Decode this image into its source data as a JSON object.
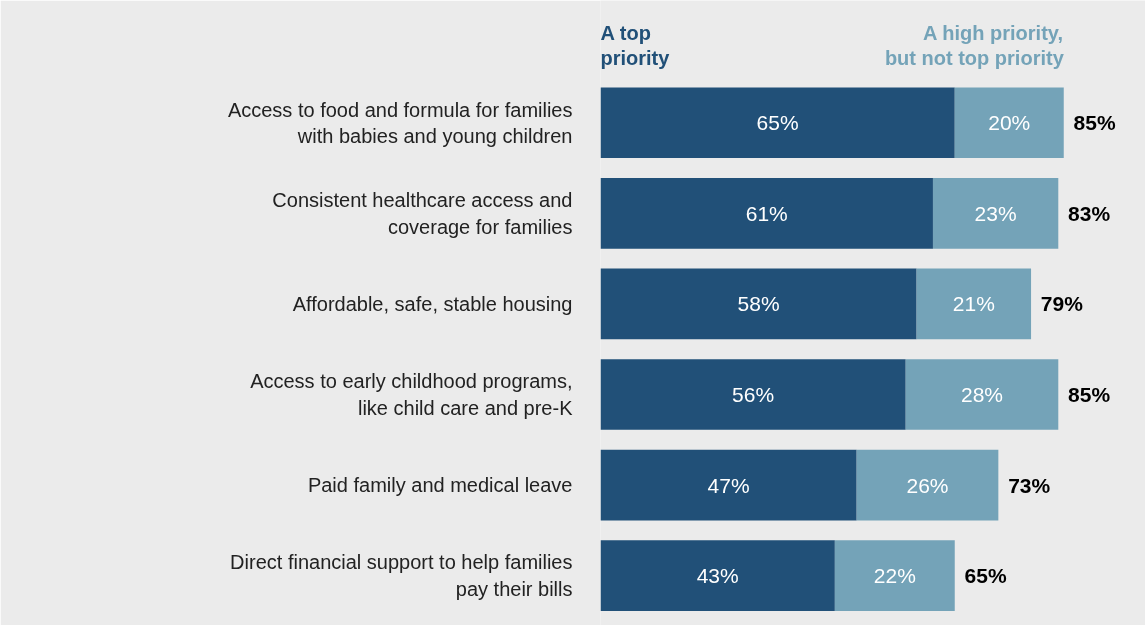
{
  "chart_data": {
    "type": "bar",
    "orientation": "horizontal",
    "stacked": true,
    "legend": "top",
    "categories": [
      "Access to food and formula for families\nwith babies and young children",
      "Consistent healthcare access and\ncoverage for families",
      "Affordable, safe, stable housing",
      "Access to early childhood programs,\nlike child care and pre-K",
      "Paid family and medical leave",
      "Direct financial support to help families\npay their bills"
    ],
    "xlim": [
      0,
      100
    ],
    "series": [
      {
        "name": "A top\npriority",
        "color": "#215078",
        "values": [
          65,
          61,
          58,
          56,
          47,
          43
        ],
        "value_labels": [
          "65%",
          "61%",
          "58%",
          "56%",
          "47%",
          "43%"
        ]
      },
      {
        "name": "A high priority,\nbut not top priority",
        "color": "#74a3b8",
        "values": [
          20,
          23,
          21,
          28,
          26,
          22
        ],
        "value_labels": [
          "20%",
          "23%",
          "21%",
          "28%",
          "26%",
          "22%"
        ]
      }
    ],
    "totals": [
      "85%",
      "83%",
      "79%",
      "85%",
      "73%",
      "65%"
    ]
  }
}
